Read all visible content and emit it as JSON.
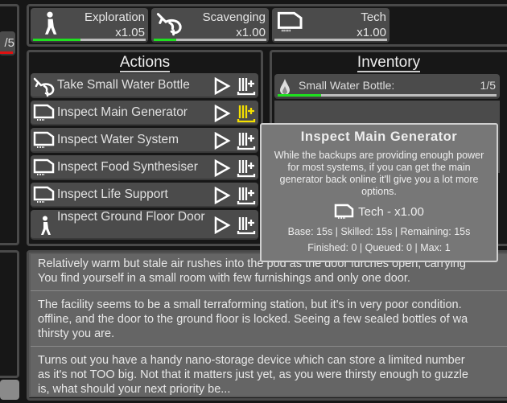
{
  "left_panel": {
    "partial_item_count": "/5"
  },
  "skills": [
    {
      "name": "Exploration",
      "multiplier": "x1.05",
      "icon": "walking-person-icon",
      "progress": 0.42
    },
    {
      "name": "Scavenging",
      "multiplier": "x1.00",
      "icon": "grabbing-hand-icon",
      "progress": 0.2
    },
    {
      "name": "Tech",
      "multiplier": "x1.00",
      "icon": "chip-icon",
      "progress": 0.0
    }
  ],
  "actions": {
    "title": "Actions",
    "items": [
      {
        "label": "Take Small Water Bottle",
        "icon": "grabbing-hand-icon",
        "queue_highlight": false
      },
      {
        "label": "Inspect Main Generator",
        "icon": "chip-icon",
        "queue_highlight": true
      },
      {
        "label": "Inspect Water System",
        "icon": "chip-icon",
        "queue_highlight": false
      },
      {
        "label": "Inspect Food Synthesiser",
        "icon": "chip-icon",
        "queue_highlight": false
      },
      {
        "label": "Inspect Life Support",
        "icon": "chip-icon",
        "queue_highlight": false
      },
      {
        "label": "Inspect Ground Floor Door",
        "icon": "walking-person-icon",
        "queue_highlight": false
      }
    ]
  },
  "inventory": {
    "title": "Inventory",
    "items": [
      {
        "name": "Small Water Bottle:",
        "count": "1/5",
        "icon": "water-drop-icon",
        "fill": 0.2
      }
    ]
  },
  "tooltip": {
    "title": "Inspect Main Generator",
    "description": "While the backups are providing enough power for most systems, if you can get the main generator back online it'll give you a lot more options.",
    "skill": "Tech - x1.00",
    "timing": "Base: 15s | Skilled: 15s | Remaining: 15s",
    "counts": "Finished: 0 | Queued: 0 | Max: 1"
  },
  "log": [
    "Relatively warm but stale air rushes into the pod as the door lurches open, carrying\nYou find yourself in a small room with few furnishings and only one door.",
    "The facility seems to be a small terraforming station, but it's in very poor condition.\noffline, and the door to the ground floor is locked. Seeing a few sealed bottles of wa\nthirsty you are.",
    "Turns out you have a handy nano-storage device which can store a limited number\nas it's not TOO big. Not that it matters just yet, as you were thirsty enough to guzzle\nis, what should your next priority be..."
  ],
  "colors": {
    "progress": "#1fe01f",
    "highlight": "#f5e000",
    "danger": "#e01010"
  }
}
